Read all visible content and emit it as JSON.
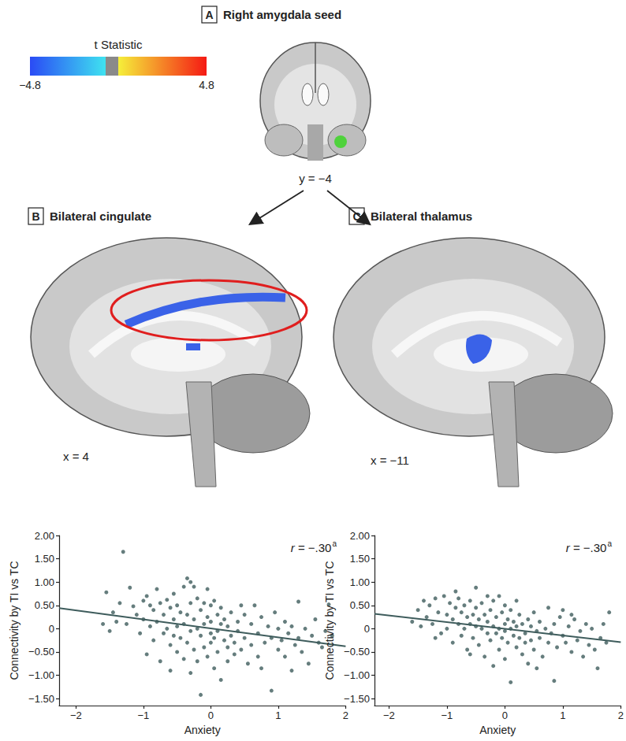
{
  "figure": {
    "panels": [
      {
        "letter": "A",
        "title": "Right amygdala seed",
        "slice": "y = −4"
      },
      {
        "letter": "B",
        "title": "Bilateral cingulate",
        "slice": "x = 4"
      },
      {
        "letter": "C",
        "title": "Bilateral thalamus",
        "slice": "x = −11"
      }
    ],
    "colorbar": {
      "title": "t Statistic",
      "range": [
        -4.8,
        4.8
      ],
      "ticks": [
        {
          "value": -4.8,
          "label": "−4.8"
        },
        4.8
      ],
      "colors": [
        "#2a4bf5",
        "#3fe3f0",
        "#8a8a8a",
        "#f5ef3a",
        "#f51a14"
      ]
    }
  },
  "chart_data": [
    {
      "type": "scatter",
      "x_label": "Anxiety",
      "y_label": "Connectivity by TI vs TC",
      "annotation": "r = −.30",
      "footnote_mark": "a",
      "color": "#3e5c5c",
      "marker": "circle",
      "grid": false,
      "xlim": [
        -2.25,
        2
      ],
      "xticks": [
        {
          "value": -2,
          "label": "−2"
        },
        {
          "value": -1,
          "label": "−1"
        },
        0,
        1,
        2
      ],
      "ylim": [
        -1.65,
        2
      ],
      "yticks": [
        {
          "value": -1.5,
          "label": "−1.50"
        },
        {
          "value": -1,
          "label": "−1.00"
        },
        {
          "value": -0.5,
          "label": "−0.50"
        },
        0,
        {
          "value": 0.5,
          "label": "0.50"
        },
        {
          "value": 1,
          "label": "1.00"
        },
        {
          "value": 1.5,
          "label": "1.50"
        },
        {
          "value": 2,
          "label": "2.00"
        }
      ],
      "x": [
        -1.55,
        -1.5,
        -1.45,
        -1.4,
        -1.35,
        -1.3,
        -1.25,
        -1.2,
        -1.15,
        -1.1,
        -1.05,
        -1.0,
        -1.0,
        -0.95,
        -0.9,
        -0.9,
        -0.85,
        -0.85,
        -0.8,
        -0.8,
        -0.75,
        -0.75,
        -0.7,
        -0.7,
        -0.65,
        -0.65,
        -0.6,
        -0.6,
        -0.6,
        -0.55,
        -0.55,
        -0.5,
        -0.5,
        -0.5,
        -0.45,
        -0.45,
        -0.4,
        -0.4,
        -0.4,
        -0.35,
        -0.35,
        -0.35,
        -0.3,
        -0.3,
        -0.3,
        -0.3,
        -0.25,
        -0.25,
        -0.2,
        -0.2,
        -0.2,
        -0.15,
        -0.15,
        -0.15,
        -0.1,
        -0.1,
        -0.1,
        -0.05,
        -0.05,
        -0.05,
        0.0,
        0.0,
        0.0,
        0.0,
        0.05,
        0.05,
        0.05,
        0.1,
        0.1,
        0.1,
        0.15,
        0.15,
        0.15,
        0.2,
        0.2,
        0.25,
        0.25,
        0.25,
        0.3,
        0.3,
        0.35,
        0.35,
        0.4,
        0.4,
        0.45,
        0.5,
        0.5,
        0.55,
        0.6,
        0.6,
        0.65,
        0.7,
        0.7,
        0.75,
        0.8,
        0.85,
        0.9,
        0.9,
        0.95,
        1.0,
        1.0,
        1.05,
        1.1,
        1.1,
        1.15,
        1.2,
        1.25,
        1.3,
        1.3,
        1.35,
        1.4,
        1.45,
        1.5,
        1.55,
        1.6,
        1.65,
        1.7,
        1.75,
        1.8,
        -1.6,
        -0.95,
        -0.55,
        0.45,
        -0.25,
        0.75,
        1.2
      ],
      "values": [
        0.78,
        -0.05,
        0.35,
        0.15,
        0.55,
        1.65,
        0.1,
        0.88,
        0.48,
        0.3,
        -0.1,
        0.6,
        0.2,
        -0.55,
        0.5,
        0.05,
        0.4,
        -0.25,
        0.85,
        0.15,
        0.55,
        -0.7,
        0.3,
        -0.1,
        0.62,
        0.0,
        0.45,
        -0.35,
        -0.9,
        0.2,
        0.75,
        0.05,
        -0.5,
        0.5,
        0.35,
        -0.2,
        0.9,
        0.1,
        -0.65,
        1.08,
        0.3,
        -0.3,
        1.0,
        0.55,
        -0.05,
        -0.95,
        0.2,
        -0.45,
        0.65,
        0.0,
        -0.7,
        0.4,
        -0.15,
        -1.42,
        0.55,
        0.1,
        -0.4,
        0.85,
        0.25,
        -0.6,
        0.5,
        -0.1,
        -0.3,
        0.15,
        0.6,
        -0.2,
        -0.85,
        0.3,
        -0.05,
        -0.5,
        0.1,
        -1.1,
        0.45,
        -0.25,
        0.2,
        -0.4,
        0.05,
        -0.7,
        0.35,
        -0.15,
        -0.3,
        -0.55,
        0.15,
        -0.05,
        -0.45,
        0.3,
        -0.2,
        -0.75,
        0.1,
        -0.35,
        0.5,
        -0.1,
        -0.6,
        0.25,
        -0.3,
        0.05,
        -1.33,
        -0.2,
        0.35,
        -0.45,
        0.0,
        -0.25,
        0.15,
        -0.6,
        -0.1,
        0.05,
        -0.35,
        0.58,
        -0.2,
        -0.5,
        0.0,
        -0.75,
        -0.15,
        0.2,
        -0.3,
        -0.4,
        -0.05,
        0.52,
        -0.15,
        0.1,
        0.7,
        -0.15,
        0.5,
        0.9,
        -0.85,
        -0.9
      ],
      "fit": {
        "x": [
          -2.25,
          2
        ],
        "y": [
          0.44,
          -0.38
        ]
      }
    },
    {
      "type": "scatter",
      "x_label": "Anxiety",
      "y_label": "Connectivity by TI vs TC",
      "annotation": "r = −.30",
      "footnote_mark": "a",
      "color": "#3e5c5c",
      "marker": "circle",
      "grid": false,
      "xlim": [
        -2.25,
        2
      ],
      "xticks": [
        {
          "value": -2,
          "label": "−2"
        },
        {
          "value": -1,
          "label": "−1"
        },
        0,
        1,
        2
      ],
      "ylim": [
        -1.65,
        2
      ],
      "yticks": [
        {
          "value": -1.5,
          "label": "−1.50"
        },
        {
          "value": -1,
          "label": "−1.00"
        },
        {
          "value": -0.5,
          "label": "−0.50"
        },
        0,
        {
          "value": 0.5,
          "label": "0.50"
        },
        {
          "value": 1,
          "label": "1.00"
        },
        {
          "value": 1.5,
          "label": "1.50"
        },
        {
          "value": 2,
          "label": "2.00"
        }
      ],
      "x": [
        -1.6,
        -1.5,
        -1.45,
        -1.4,
        -1.35,
        -1.3,
        -1.25,
        -1.2,
        -1.15,
        -1.1,
        -1.05,
        -1.0,
        -1.0,
        -0.95,
        -0.9,
        -0.9,
        -0.85,
        -0.8,
        -0.8,
        -0.75,
        -0.75,
        -0.7,
        -0.7,
        -0.65,
        -0.65,
        -0.6,
        -0.6,
        -0.55,
        -0.55,
        -0.5,
        -0.5,
        -0.5,
        -0.45,
        -0.45,
        -0.4,
        -0.4,
        -0.35,
        -0.35,
        -0.3,
        -0.3,
        -0.3,
        -0.25,
        -0.25,
        -0.2,
        -0.2,
        -0.2,
        -0.15,
        -0.15,
        -0.1,
        -0.1,
        -0.1,
        -0.05,
        -0.05,
        0.0,
        0.0,
        0.0,
        0.0,
        0.05,
        0.05,
        0.1,
        0.1,
        0.1,
        0.15,
        0.15,
        0.2,
        0.2,
        0.25,
        0.25,
        0.3,
        0.3,
        0.35,
        0.35,
        0.4,
        0.4,
        0.45,
        0.45,
        0.5,
        0.5,
        0.55,
        0.6,
        0.6,
        0.65,
        0.7,
        0.75,
        0.75,
        0.8,
        0.85,
        0.85,
        0.9,
        0.95,
        1.0,
        1.0,
        1.05,
        1.1,
        1.15,
        1.2,
        1.25,
        1.3,
        1.35,
        1.4,
        1.45,
        1.5,
        1.55,
        1.6,
        1.65,
        1.7,
        1.75,
        1.8,
        -1.2,
        -0.6,
        0.2,
        -0.85,
        1.15,
        0.55
      ],
      "values": [
        0.15,
        0.4,
        0.05,
        0.6,
        0.25,
        0.5,
        0.1,
        0.65,
        0.35,
        -0.1,
        0.7,
        0.3,
        0.0,
        0.55,
        0.2,
        -0.3,
        0.45,
        0.1,
        0.65,
        -0.15,
        0.35,
        0.5,
        0.0,
        0.25,
        -0.45,
        0.6,
        0.1,
        0.3,
        -0.2,
        0.88,
        0.45,
        0.05,
        0.2,
        -0.35,
        0.55,
        0.0,
        0.3,
        -0.6,
        0.15,
        0.7,
        -0.1,
        0.4,
        -0.25,
        0.05,
        0.6,
        -0.8,
        0.25,
        -0.1,
        0.7,
        0.0,
        -0.45,
        0.35,
        -0.2,
        0.1,
        -0.05,
        -0.65,
        0.5,
        0.2,
        -0.3,
        0.0,
        -1.15,
        0.4,
        -0.15,
        0.15,
        -0.4,
        0.05,
        -0.2,
        0.3,
        -0.55,
        0.1,
        -0.1,
        -0.3,
        0.2,
        -0.75,
        0.05,
        -0.25,
        0.35,
        -0.45,
        -0.05,
        0.15,
        -0.2,
        -0.6,
        0.0,
        0.45,
        -0.3,
        -0.1,
        -1.12,
        0.1,
        -0.4,
        0.25,
        -0.15,
        0.4,
        -0.3,
        0.05,
        -0.5,
        0.2,
        -0.25,
        -0.05,
        -0.6,
        0.1,
        -0.35,
        0.0,
        -0.45,
        -0.85,
        -0.2,
        0.1,
        -0.3,
        0.35,
        -0.2,
        -0.55,
        0.6,
        0.8,
        0.3,
        -0.85
      ],
      "fit": {
        "x": [
          -2.25,
          2
        ],
        "y": [
          0.32,
          -0.29
        ]
      }
    }
  ]
}
